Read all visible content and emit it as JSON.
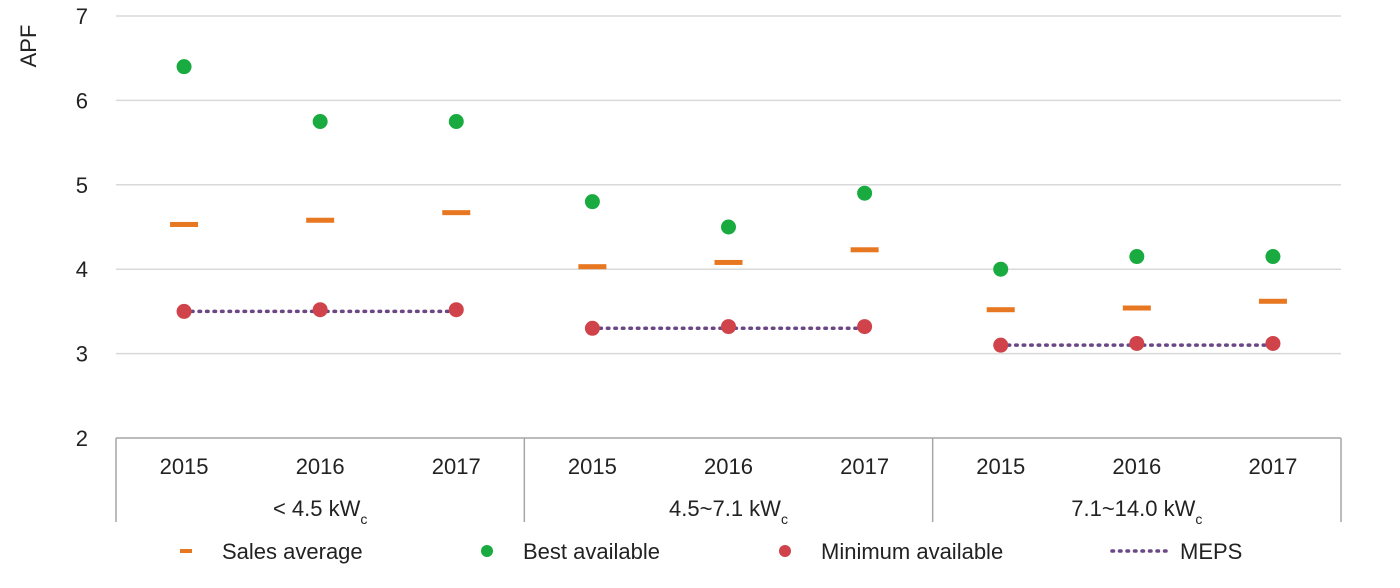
{
  "chart_data": {
    "type": "scatter",
    "title": "",
    "xlabel": "",
    "ylabel": "APF",
    "ylim": [
      2,
      7
    ],
    "yticks": [
      2,
      3,
      4,
      5,
      6,
      7
    ],
    "grid": true,
    "legend_position": "bottom",
    "groups": [
      {
        "label": "< 4.5 kW",
        "subscript": "c",
        "years": [
          "2015",
          "2016",
          "2017"
        ]
      },
      {
        "label": "4.5~7.1 kW",
        "subscript": "c",
        "years": [
          "2015",
          "2016",
          "2017"
        ]
      },
      {
        "label": "7.1~14.0 kW",
        "subscript": "c",
        "years": [
          "2015",
          "2016",
          "2017"
        ]
      }
    ],
    "categories": [
      "2015",
      "2016",
      "2017",
      "2015",
      "2016",
      "2017",
      "2015",
      "2016",
      "2017"
    ],
    "series": [
      {
        "name": "Sales average",
        "marker": "dash",
        "color": "#E87722",
        "values": [
          4.53,
          4.58,
          4.67,
          4.03,
          4.08,
          4.23,
          3.52,
          3.54,
          3.62
        ]
      },
      {
        "name": "Best available",
        "marker": "circle",
        "color": "#1AAB40",
        "values": [
          6.4,
          5.75,
          5.75,
          4.8,
          4.5,
          4.9,
          4.0,
          4.15,
          4.15
        ]
      },
      {
        "name": "Minimum available",
        "marker": "circle",
        "color": "#D0434A",
        "values": [
          3.5,
          3.52,
          3.52,
          3.3,
          3.32,
          3.32,
          3.1,
          3.12,
          3.12
        ]
      },
      {
        "name": "MEPS",
        "marker": "dotted-line",
        "color": "#6B4785",
        "segments": [
          {
            "group": 0,
            "value": 3.5
          },
          {
            "group": 1,
            "value": 3.3
          },
          {
            "group": 2,
            "value": 3.1
          }
        ]
      }
    ]
  }
}
